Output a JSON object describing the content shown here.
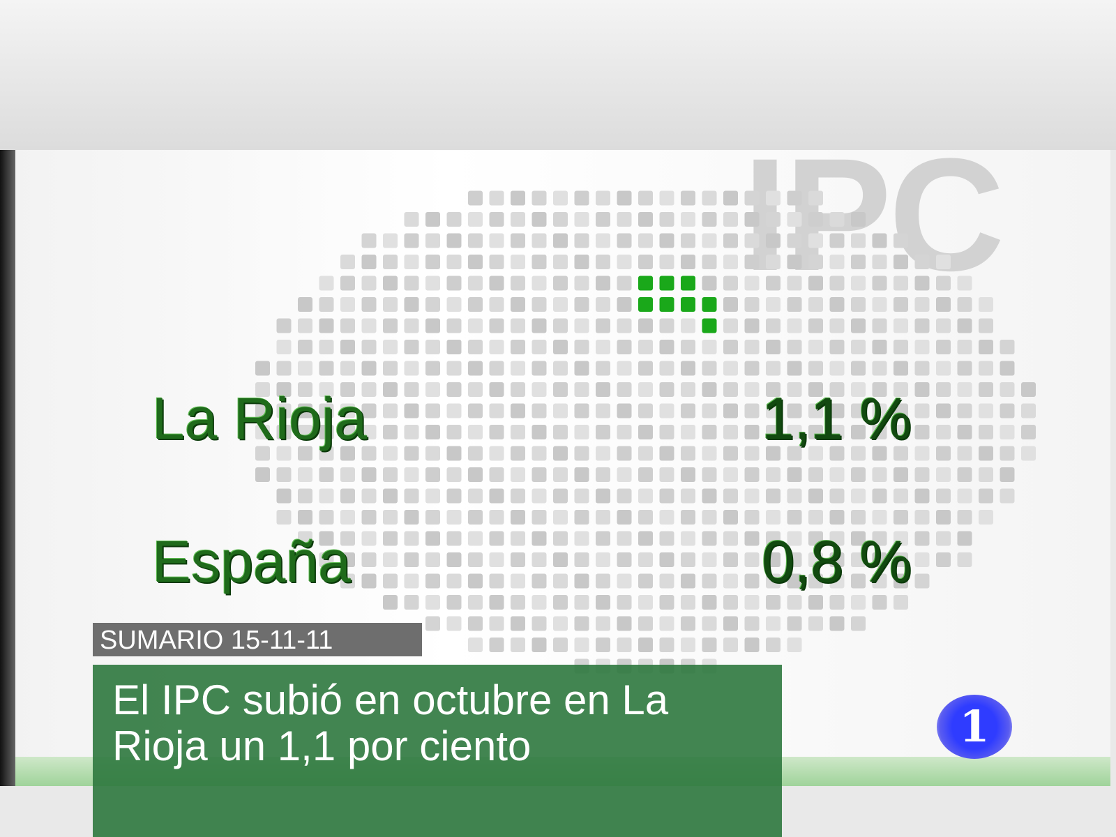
{
  "background_title": "IPC",
  "rows": [
    {
      "label": "La Rioja",
      "value": "1,1 %"
    },
    {
      "label": "España",
      "value": "0,8 %"
    }
  ],
  "lower_third": {
    "section": "SUMARIO 15-11-11",
    "headline": "El IPC subió en octubre en La Rioja un 1,1 por ciento"
  },
  "channel_logo": "1",
  "colors": {
    "accent_green": "#2e783e",
    "text_green": "#1f6a1b",
    "logo_blue": "#2f3cff",
    "highlight_green": "#1aa81a"
  }
}
